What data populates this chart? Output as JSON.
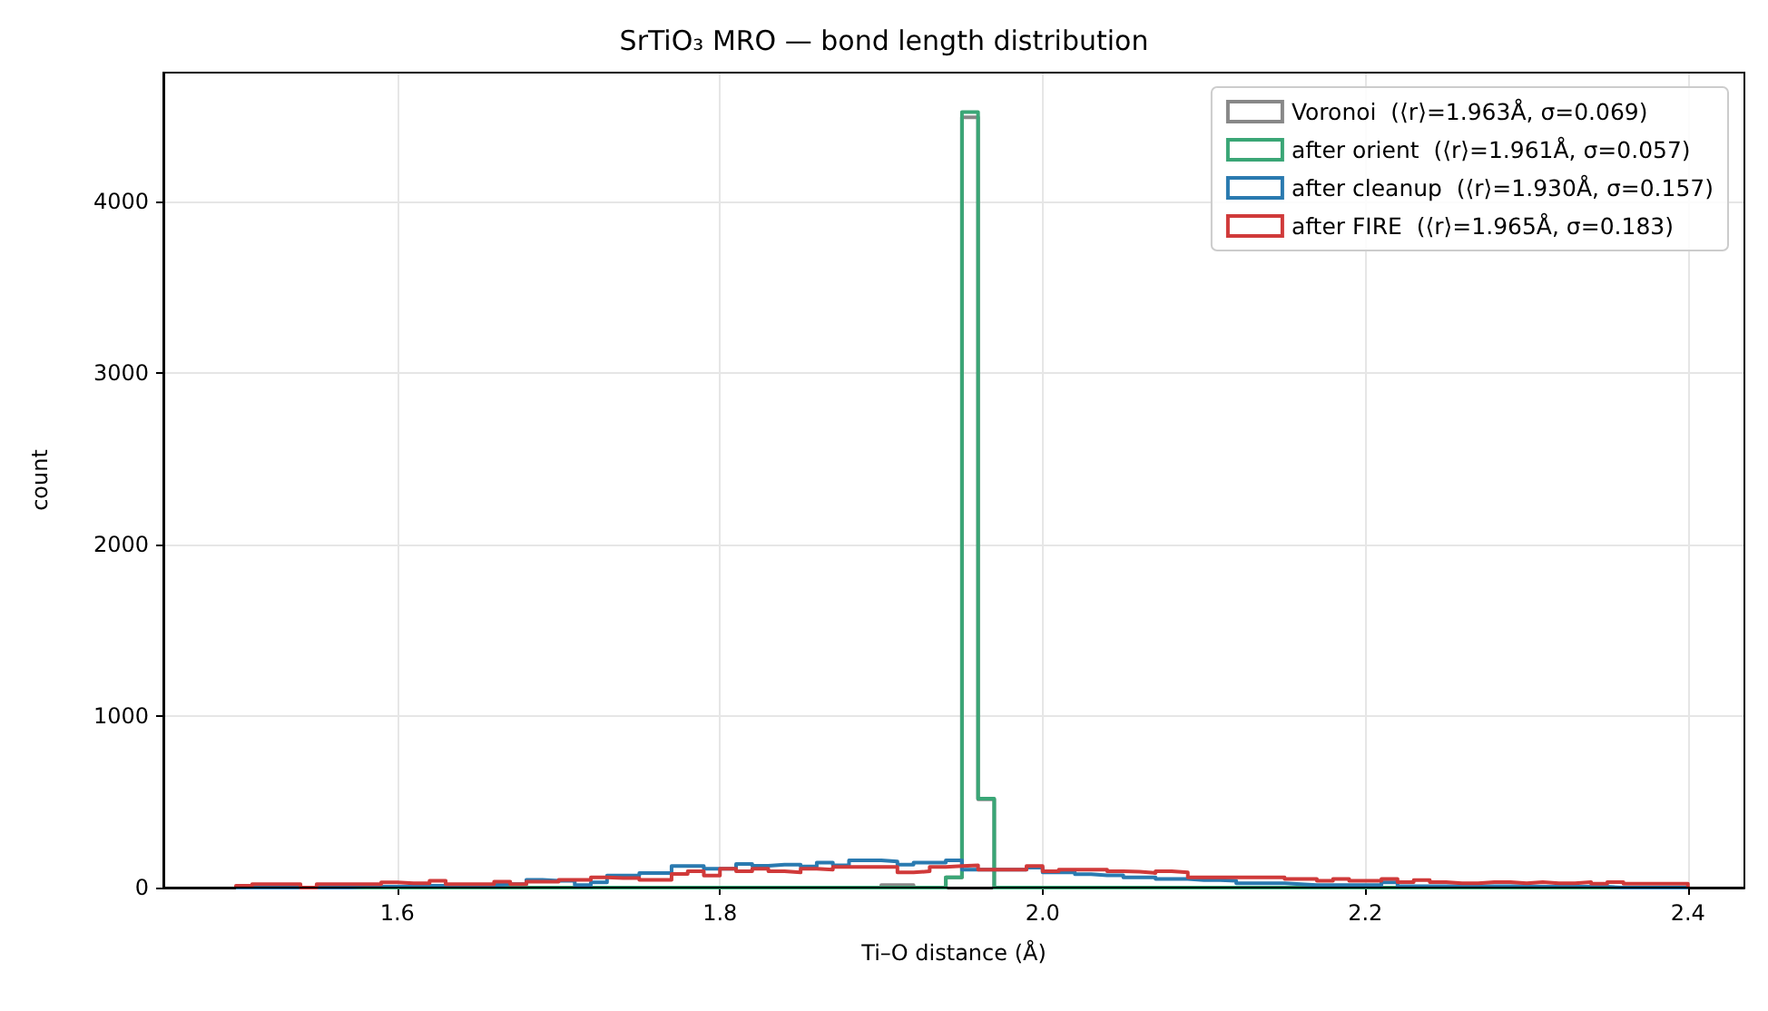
{
  "chart_data": {
    "type": "histogram",
    "title": "SrTiO₃ MRO — bond length distribution",
    "xlabel": "Ti–O distance (Å)",
    "ylabel": "count",
    "bins": [
      1.5,
      1.51,
      1.52,
      1.53,
      1.54,
      1.55,
      1.56,
      1.57,
      1.58,
      1.59,
      1.6,
      1.61,
      1.62,
      1.63,
      1.64,
      1.65,
      1.66,
      1.67,
      1.68,
      1.69,
      1.7,
      1.71,
      1.72,
      1.73,
      1.74,
      1.75,
      1.76,
      1.77,
      1.78,
      1.79,
      1.8,
      1.81,
      1.82,
      1.83,
      1.84,
      1.85,
      1.86,
      1.87,
      1.88,
      1.89,
      1.9,
      1.91,
      1.92,
      1.93,
      1.94,
      1.95,
      1.96,
      1.97,
      1.98,
      1.99,
      2.0,
      2.01,
      2.02,
      2.03,
      2.04,
      2.05,
      2.06,
      2.07,
      2.08,
      2.09,
      2.1,
      2.11,
      2.12,
      2.13,
      2.14,
      2.15,
      2.16,
      2.17,
      2.18,
      2.19,
      2.2,
      2.21,
      2.22,
      2.23,
      2.24,
      2.25,
      2.26,
      2.27,
      2.28,
      2.29,
      2.3,
      2.31,
      2.32,
      2.33,
      2.34,
      2.35,
      2.36,
      2.37,
      2.38,
      2.39,
      2.4
    ],
    "series": [
      {
        "name": "Voronoi  (⟨r⟩=1.963Å, σ=0.069)",
        "color": "#888888",
        "values": [
          0,
          0,
          0,
          0,
          0,
          0,
          0,
          0,
          0,
          0,
          0,
          0,
          0,
          0,
          0,
          0,
          0,
          0,
          0,
          0,
          0,
          0,
          0,
          0,
          0,
          0,
          0,
          0,
          0,
          0,
          0,
          0,
          0,
          0,
          0,
          0,
          0,
          0,
          0,
          0,
          15,
          15,
          0,
          0,
          60,
          4490,
          515,
          0,
          0,
          0,
          0,
          0,
          0,
          0,
          0,
          0,
          0,
          0,
          0,
          0,
          0,
          0,
          0,
          0,
          0,
          0,
          0,
          0,
          0,
          0,
          0,
          0,
          0,
          0,
          0,
          0,
          0,
          0,
          0,
          0,
          0,
          0,
          0,
          0,
          0,
          0,
          0,
          0,
          0,
          0
        ]
      },
      {
        "name": "after orient  (⟨r⟩=1.961Å, σ=0.057)",
        "color": "#3aa676",
        "values": [
          0,
          0,
          0,
          0,
          0,
          0,
          0,
          0,
          0,
          0,
          0,
          0,
          0,
          0,
          0,
          0,
          0,
          0,
          0,
          0,
          0,
          0,
          0,
          0,
          0,
          0,
          0,
          0,
          0,
          0,
          0,
          0,
          0,
          0,
          0,
          0,
          0,
          0,
          0,
          0,
          0,
          0,
          0,
          0,
          60,
          4520,
          519,
          0,
          0,
          0,
          0,
          0,
          0,
          0,
          0,
          0,
          0,
          0,
          0,
          0,
          0,
          0,
          0,
          0,
          0,
          0,
          0,
          0,
          0,
          0,
          0,
          0,
          0,
          0,
          0,
          0,
          0,
          0,
          0,
          0,
          0,
          0,
          0,
          0,
          0,
          0,
          0,
          0,
          0,
          0
        ]
      },
      {
        "name": "after cleanup  (⟨r⟩=1.930Å, σ=0.157)",
        "color": "#2a7ab0",
        "values": [
          0,
          0,
          0,
          0,
          0,
          0,
          0,
          5,
          5,
          5,
          5,
          10,
          10,
          10,
          15,
          15,
          20,
          20,
          45,
          40,
          40,
          15,
          30,
          70,
          70,
          85,
          85,
          125,
          125,
          110,
          110,
          138,
          127,
          134,
          134,
          123,
          145,
          130,
          159,
          159,
          152,
          134,
          145,
          145,
          159,
          105,
          105,
          105,
          105,
          116,
          88,
          88,
          78,
          71,
          71,
          60,
          60,
          50,
          50,
          43,
          43,
          40,
          25,
          25,
          25,
          20,
          15,
          15,
          15,
          15,
          15,
          30,
          8,
          8,
          8,
          8,
          8,
          8,
          8,
          8,
          5,
          5,
          5,
          5,
          5,
          0,
          0,
          0,
          0,
          0
        ]
      },
      {
        "name": "after FIRE  (⟨r⟩=1.965Å, σ=0.183)",
        "color": "#d03a3a",
        "values": [
          10,
          20,
          20,
          20,
          0,
          20,
          20,
          20,
          20,
          30,
          25,
          25,
          40,
          20,
          20,
          20,
          35,
          20,
          35,
          35,
          45,
          45,
          60,
          55,
          55,
          45,
          45,
          80,
          95,
          70,
          110,
          95,
          110,
          95,
          88,
          110,
          105,
          120,
          120,
          120,
          120,
          88,
          95,
          120,
          125,
          130,
          105,
          105,
          105,
          125,
          95,
          105,
          105,
          105,
          95,
          92,
          85,
          95,
          88,
          60,
          60,
          60,
          60,
          60,
          60,
          50,
          50,
          40,
          50,
          40,
          40,
          50,
          32,
          43,
          32,
          25,
          25,
          32,
          32,
          25,
          32,
          25,
          25,
          32,
          22,
          32,
          22,
          22,
          22,
          22
        ]
      }
    ],
    "xlim": [
      1.455,
      2.435
    ],
    "xticks": [
      1.6,
      1.8,
      {
        "value": 2.0,
        "label": "2.0"
      },
      2.2,
      2.4
    ],
    "ylim": [
      0,
      4750
    ],
    "yticks": [
      0,
      1000,
      2000,
      3000,
      4000
    ],
    "grid": true,
    "legend": "top right"
  }
}
